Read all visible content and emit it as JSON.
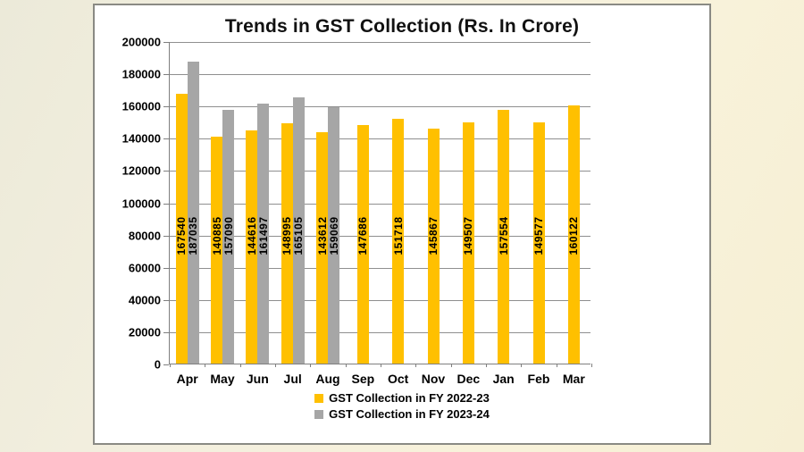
{
  "chart_data": {
    "type": "bar",
    "title": "Trends in GST Collection (Rs. In Crore)",
    "categories": [
      "Apr",
      "May",
      "Jun",
      "Jul",
      "Aug",
      "Sep",
      "Oct",
      "Nov",
      "Dec",
      "Jan",
      "Feb",
      "Mar"
    ],
    "series": [
      {
        "name": "GST Collection in FY 2022-23",
        "color": "#FFC000",
        "values": [
          167540,
          140885,
          144616,
          148995,
          143612,
          147686,
          151718,
          145867,
          149507,
          157554,
          149577,
          160122
        ]
      },
      {
        "name": "GST Collection in FY 2023-24",
        "color": "#A6A6A6",
        "values": [
          187035,
          157090,
          161497,
          165105,
          159069,
          null,
          null,
          null,
          null,
          null,
          null,
          null
        ]
      }
    ],
    "ylim": [
      0,
      200000
    ],
    "ytick_step": 20000,
    "grid": true,
    "data_labels": true,
    "legend_position": "bottom",
    "colors": {
      "grid": "#8f8f8f",
      "axis": "#7f7f7f",
      "text": "#000000",
      "title": "#111111"
    }
  }
}
